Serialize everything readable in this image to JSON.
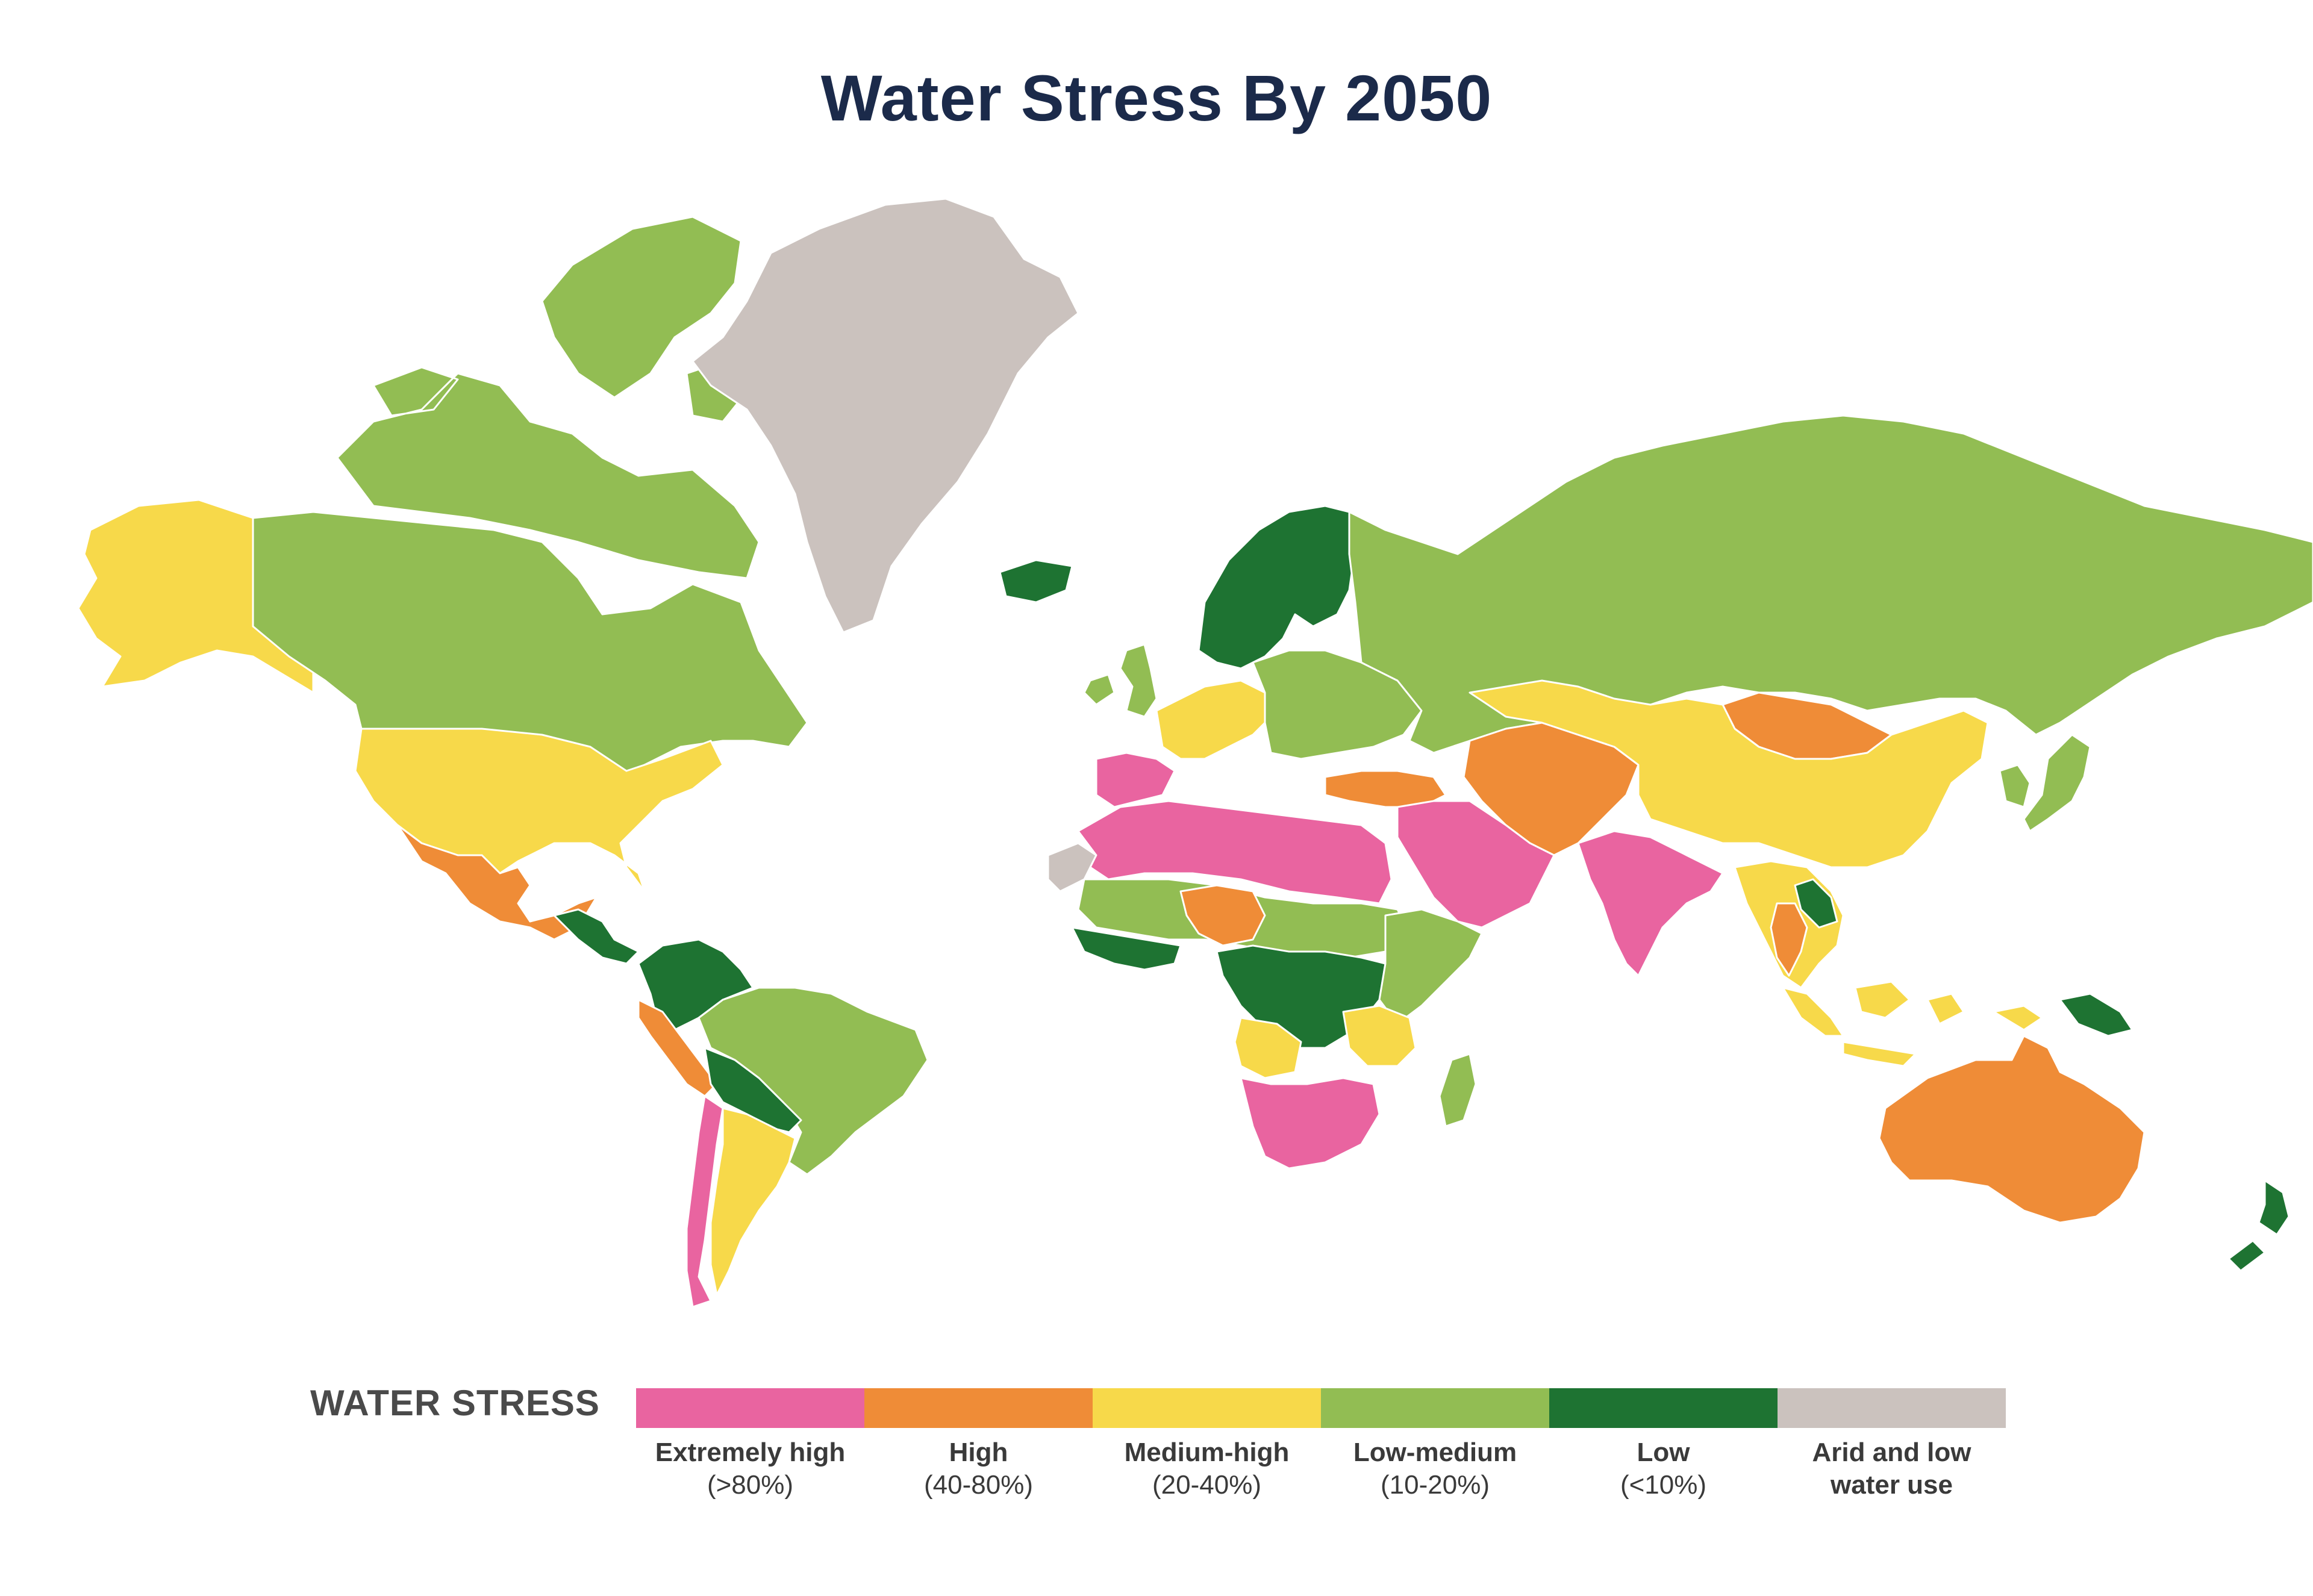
{
  "title": "Water Stress By 2050",
  "legend": {
    "heading": "WATER STRESS",
    "items": [
      {
        "label": "Extremely high",
        "range": "(>80%)",
        "color": "#e964a0"
      },
      {
        "label": "High",
        "range": "(40-80%)",
        "color": "#ef8c37"
      },
      {
        "label": "Medium-high",
        "range": "(20-40%)",
        "color": "#f7d94a"
      },
      {
        "label": "Low-medium",
        "range": "(10-20%)",
        "color": "#92bd53"
      },
      {
        "label": "Low",
        "range": "(<10%)",
        "color": "#1e7332"
      },
      {
        "label": "Arid and low water use",
        "range": "",
        "color": "#cbc2be"
      }
    ]
  },
  "regions": [
    {
      "id": "alaska",
      "category": "Medium-high"
    },
    {
      "id": "canada",
      "category": "Low-medium"
    },
    {
      "id": "arctic-islands",
      "category": "Low-medium"
    },
    {
      "id": "greenland",
      "category": "Arid and low water use"
    },
    {
      "id": "iceland",
      "category": "Low"
    },
    {
      "id": "usa",
      "category": "Medium-high"
    },
    {
      "id": "mexico",
      "category": "High"
    },
    {
      "id": "central-america",
      "category": "Low"
    },
    {
      "id": "colombia-venezuela",
      "category": "Low"
    },
    {
      "id": "peru",
      "category": "High"
    },
    {
      "id": "brazil",
      "category": "Low-medium"
    },
    {
      "id": "bolivia-paraguay",
      "category": "Low"
    },
    {
      "id": "chile",
      "category": "Extremely high"
    },
    {
      "id": "argentina",
      "category": "Medium-high"
    },
    {
      "id": "uk-ireland",
      "category": "Low-medium"
    },
    {
      "id": "scandinavia",
      "category": "Low"
    },
    {
      "id": "western-europe",
      "category": "Medium-high"
    },
    {
      "id": "eastern-europe",
      "category": "Low-medium"
    },
    {
      "id": "iberia",
      "category": "Extremely high"
    },
    {
      "id": "turkey",
      "category": "High"
    },
    {
      "id": "russia",
      "category": "Low-medium"
    },
    {
      "id": "north-africa",
      "category": "Extremely high"
    },
    {
      "id": "western-sahara",
      "category": "Arid and low water use"
    },
    {
      "id": "sahel",
      "category": "Low-medium"
    },
    {
      "id": "nigeria",
      "category": "High"
    },
    {
      "id": "west-africa-coast",
      "category": "Low"
    },
    {
      "id": "central-africa",
      "category": "Low"
    },
    {
      "id": "east-africa",
      "category": "Low-medium"
    },
    {
      "id": "angola",
      "category": "Medium-high"
    },
    {
      "id": "tanzania",
      "category": "Medium-high"
    },
    {
      "id": "southern-africa",
      "category": "Extremely high"
    },
    {
      "id": "madagascar",
      "category": "Low-medium"
    },
    {
      "id": "middle-east",
      "category": "Extremely high"
    },
    {
      "id": "central-asia",
      "category": "High"
    },
    {
      "id": "india",
      "category": "Extremely high"
    },
    {
      "id": "mongolia",
      "category": "High"
    },
    {
      "id": "china",
      "category": "Medium-high"
    },
    {
      "id": "korea-japan",
      "category": "Low-medium"
    },
    {
      "id": "southeast-asia",
      "category": "Medium-high"
    },
    {
      "id": "laos",
      "category": "Low"
    },
    {
      "id": "thailand",
      "category": "High"
    },
    {
      "id": "indonesia",
      "category": "Medium-high"
    },
    {
      "id": "papua-new-guinea",
      "category": "Low"
    },
    {
      "id": "australia",
      "category": "High"
    },
    {
      "id": "new-zealand",
      "category": "Low"
    }
  ]
}
